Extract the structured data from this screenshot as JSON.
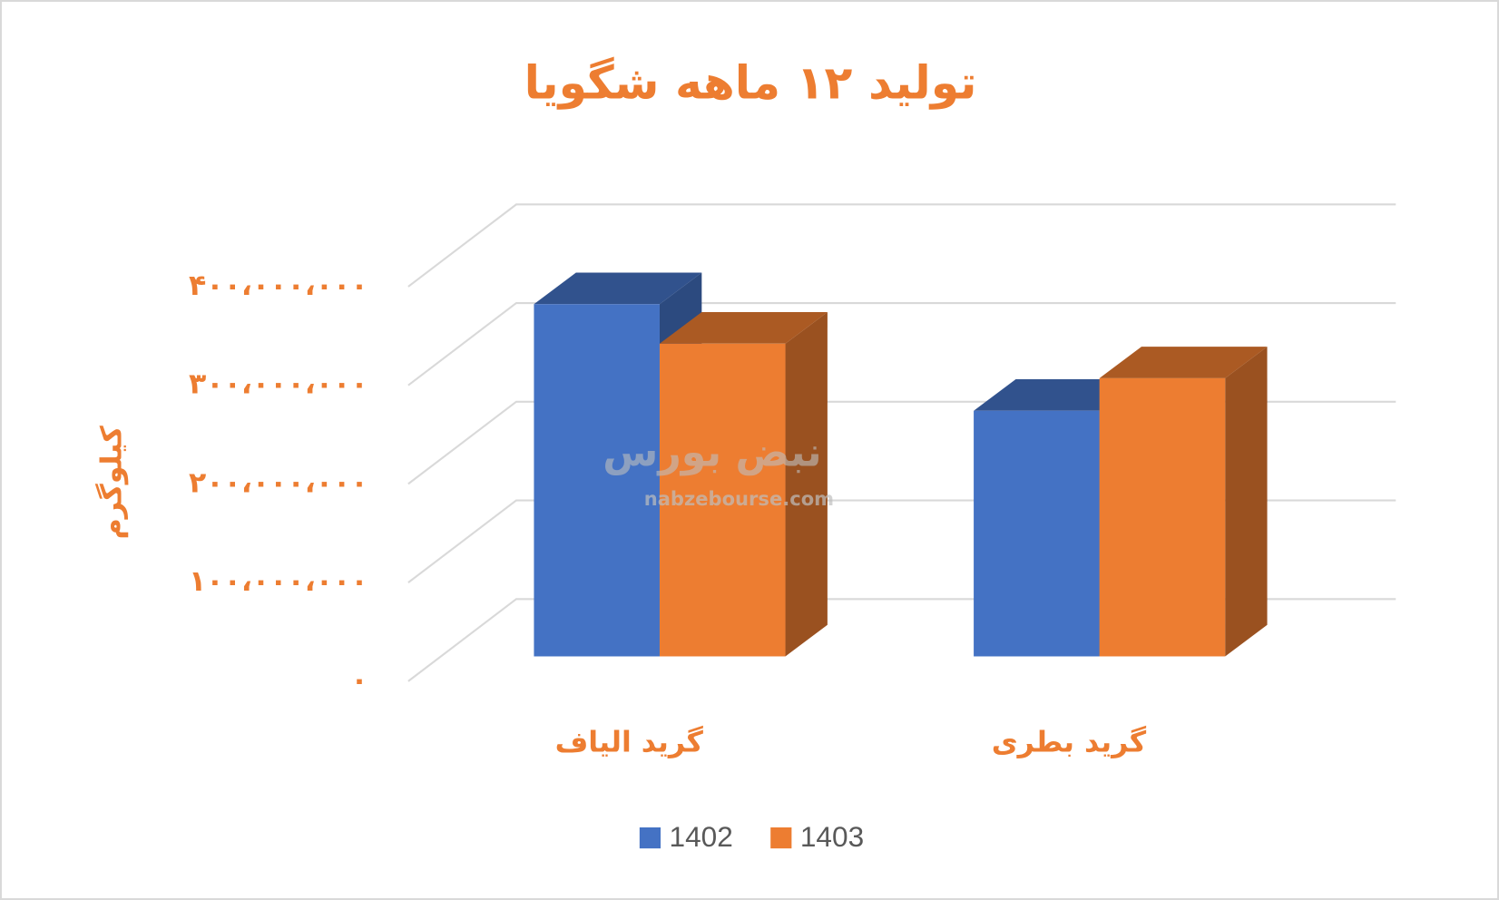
{
  "chart_data": {
    "type": "bar3d",
    "title": "تولید ۱۲ ماهه شگویا",
    "y_label": "کیلوگرم",
    "categories": [
      "گرید الیاف",
      "گرید بطری"
    ],
    "series": [
      {
        "name": "1402",
        "color": "#4472c4",
        "values": [
          357000000,
          249000000
        ]
      },
      {
        "name": "1403",
        "color": "#ed7d31",
        "values": [
          317000000,
          282000000
        ]
      }
    ],
    "ylim": [
      0,
      400000000
    ],
    "yticks": [
      {
        "value": 0,
        "label": "۰"
      },
      {
        "value": 100000000,
        "label": "۱۰۰،۰۰۰،۰۰۰"
      },
      {
        "value": 200000000,
        "label": "۲۰۰،۰۰۰،۰۰۰"
      },
      {
        "value": 300000000,
        "label": "۳۰۰،۰۰۰،۰۰۰"
      },
      {
        "value": 400000000,
        "label": "۴۰۰،۰۰۰،۰۰۰"
      }
    ],
    "grid": true,
    "legend": "bottom",
    "watermark": [
      "نبض بورس",
      "nabzebourse.com"
    ]
  }
}
